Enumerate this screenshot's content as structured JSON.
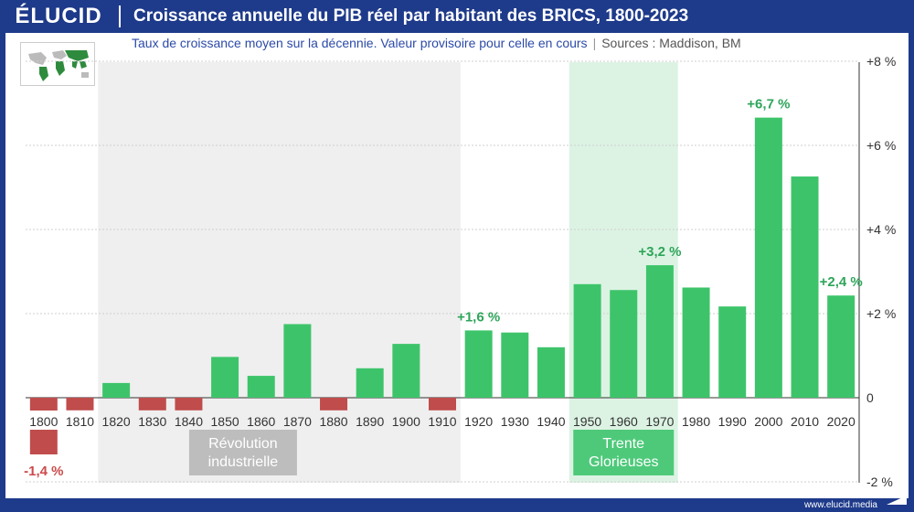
{
  "header": {
    "logo": "ÉLUCID",
    "title": "Croissance annuelle du PIB réel par habitant des BRICS, 1800-2023"
  },
  "subtitle": {
    "text": "Taux de croissance moyen sur la décennie. Valeur provisoire pour celle en cours",
    "sources": "Sources :  Maddison, BM"
  },
  "footer": {
    "site": "www.elucid.media"
  },
  "colors": {
    "positive": "#3dc46a",
    "negative": "#c04c4c",
    "header": "#1e3a8a",
    "grey_band": "#efefef",
    "green_band": "#dcf3e3"
  },
  "chart_data": {
    "type": "bar",
    "categories": [
      "1800",
      "1810",
      "1820",
      "1830",
      "1840",
      "1850",
      "1860",
      "1870",
      "1880",
      "1890",
      "1900",
      "1910",
      "1920",
      "1930",
      "1940",
      "1950",
      "1960",
      "1970",
      "1980",
      "1990",
      "2000",
      "2010",
      "2020"
    ],
    "values": [
      -1.4,
      -0.3,
      0.35,
      -0.3,
      -0.3,
      0.97,
      0.52,
      1.75,
      -0.3,
      0.7,
      1.28,
      -0.3,
      1.6,
      1.55,
      1.2,
      2.7,
      2.56,
      3.15,
      2.62,
      2.17,
      6.66,
      5.26,
      2.43
    ],
    "second_row_values": {
      "1800": -1.4
    },
    "ylim": [
      -2,
      8
    ],
    "yticks": [
      "-2 %",
      "0",
      "+2 %",
      "+4 %",
      "+6 %",
      "+8 %"
    ],
    "ytick_values": [
      -2,
      0,
      2,
      4,
      6,
      8
    ],
    "grid": true,
    "data_labels": [
      {
        "category": "1800",
        "text": "-1,4 %"
      },
      {
        "category": "1920",
        "text": "+1,6 %"
      },
      {
        "category": "1970",
        "text": "+3,2 %"
      },
      {
        "category": "2000",
        "text": "+6,7 %"
      },
      {
        "category": "2020",
        "text": "+2,4 %"
      }
    ],
    "bands": [
      {
        "from": "1820",
        "to": "1910",
        "label_lines": [
          "Révolution",
          "industrielle"
        ]
      },
      {
        "from": "1950",
        "to": "1970",
        "label_lines": [
          "Trente",
          "Glorieuses"
        ]
      }
    ]
  }
}
